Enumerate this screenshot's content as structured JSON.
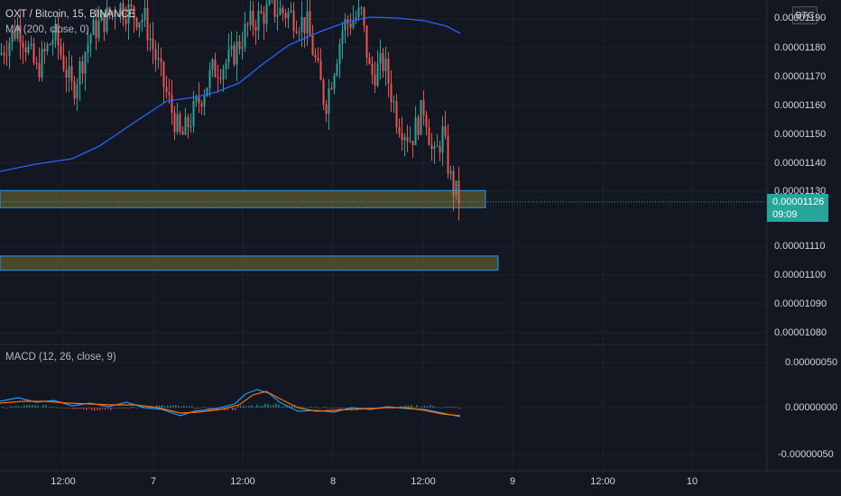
{
  "header": {
    "symbol": "OXT / Bitcoin, 15, BINANCE",
    "ma_label": "MA (200, close, 0)",
    "macd_label": "MACD (12, 26, close, 9)",
    "currency": "BTC"
  },
  "price_axis": {
    "ticks": [
      "0.00001190",
      "0.00001180",
      "0.00001170",
      "0.00001160",
      "0.00001150",
      "0.00001140",
      "0.00001130",
      "0.00001110",
      "0.00001100",
      "0.00001090",
      "0.00001080"
    ],
    "current_price": "0.00001126",
    "countdown": "09:09"
  },
  "macd_axis": {
    "ticks": [
      "0.00000050",
      "0.00000000",
      "-0.00000050"
    ]
  },
  "time_axis": {
    "ticks": [
      "12:00",
      "7",
      "12:00",
      "8",
      "12:00",
      "9",
      "12:00",
      "10"
    ]
  },
  "zones": [
    {
      "top": 1.13e-05,
      "bottom": 1.124e-05
    },
    {
      "top": 1.107e-05,
      "bottom": 1.102e-05
    }
  ],
  "colors": {
    "background": "#131722",
    "bull": "#26a69a",
    "bear": "#ef5350",
    "ma": "#2962ff",
    "macd": "#2196f3",
    "signal": "#ff6d00",
    "zone_fill": "#5e5a2e",
    "zone_border": "#2196f3"
  },
  "icons": {
    "currency_badge": "btc-badge"
  }
}
